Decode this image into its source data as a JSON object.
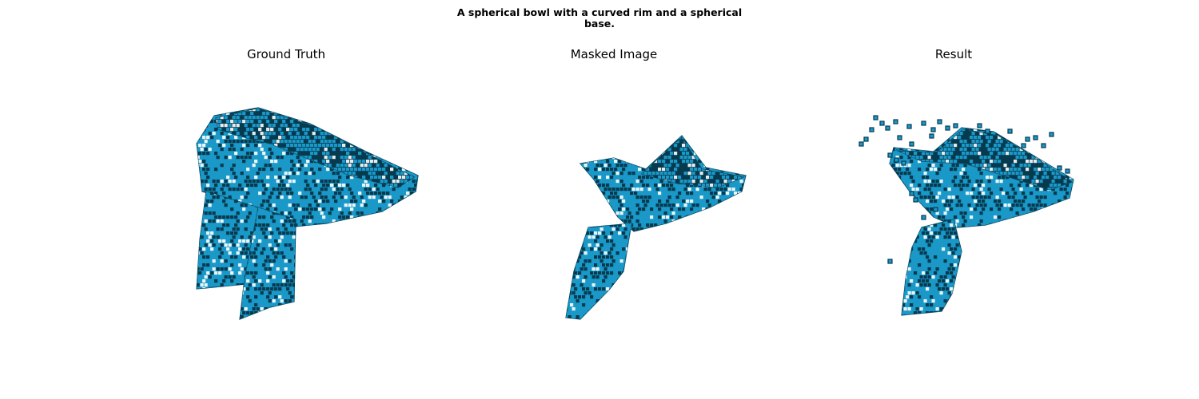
{
  "figure": {
    "title_line1": "A spherical bowl with a curved rim and a spherical",
    "title_line2": "base."
  },
  "panels": [
    {
      "title": "Ground Truth",
      "content": "full"
    },
    {
      "title": "Masked Image",
      "content": "masked"
    },
    {
      "title": "Result",
      "content": "result"
    }
  ],
  "colors": {
    "voxel_face": "#1a98c8",
    "voxel_edge": "#0a4a62",
    "voxel_shadow": "#063a4f",
    "background": "#ffffff"
  }
}
